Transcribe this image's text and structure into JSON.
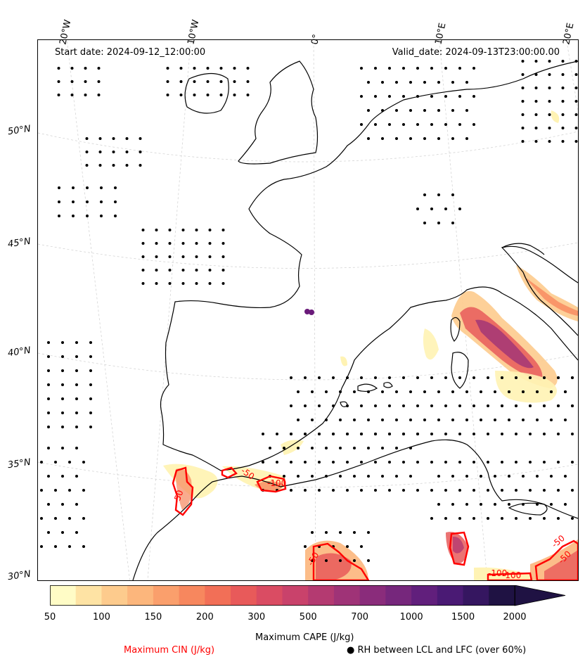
{
  "map": {
    "start_date": "Start date: 2024-09-12_12:00:00",
    "valid_date": "Valid_date: 2024-09-13T23:00:00.00",
    "lat_labels": [
      "50°N",
      "45°N",
      "40°N",
      "35°N",
      "30°N"
    ],
    "lon_labels": [
      "20°W",
      "10°W",
      "0°",
      "10°E",
      "20°E"
    ],
    "cin_labels": [
      "-50",
      "-100",
      "-50",
      "-100",
      "-50",
      "-50",
      "-100",
      "-50"
    ]
  },
  "colorbar": {
    "label": "Maximum CAPE (J/kg)",
    "ticks": [
      "50",
      "100",
      "150",
      "200",
      "300",
      "500",
      "700",
      "1000",
      "1500",
      "2000"
    ],
    "colors": [
      "#fffcc6",
      "#fee3a4",
      "#fdcb8d",
      "#fcb67c",
      "#fa9f6c",
      "#f7875e",
      "#f26f57",
      "#e85a5a",
      "#da4c63",
      "#c9426b",
      "#b43a71",
      "#9f3377",
      "#8a2c7b",
      "#76277c",
      "#611f7c",
      "#4a1a74",
      "#351660",
      "#1f1243"
    ],
    "extend_color": "#1f1243"
  },
  "legend": {
    "cin_label": "Maximum CIN (J/kg)",
    "cin_color": "#ff0000",
    "rh_label": "● RH between LCL and LFC (over 60%)"
  }
}
